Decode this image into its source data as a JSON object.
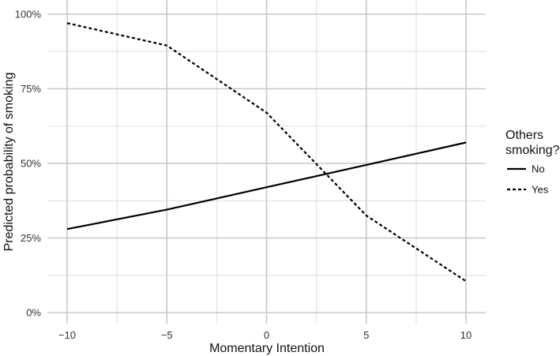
{
  "chart_data": {
    "type": "line",
    "xlabel": "Momentary Intention",
    "ylabel": "Predicted probability of smoking",
    "xlim": [
      -10,
      10
    ],
    "ylim": [
      0,
      1
    ],
    "x_ticks": [
      -10,
      -5,
      0,
      5,
      10
    ],
    "x_tick_labels": [
      "−10",
      "−5",
      "0",
      "5",
      "10"
    ],
    "y_ticks": [
      0,
      0.25,
      0.5,
      0.75,
      1
    ],
    "y_tick_labels": [
      "0%",
      "25%",
      "50%",
      "75%",
      "100%"
    ],
    "grid": true,
    "legend": {
      "title_lines": [
        "Others",
        "smoking?"
      ],
      "placement": "right"
    },
    "series": [
      {
        "name": "No",
        "line_style": "solid",
        "color": "#000000",
        "x": [
          -10,
          -5,
          0,
          5,
          10
        ],
        "y": [
          0.28,
          0.345,
          0.42,
          0.495,
          0.57
        ]
      },
      {
        "name": "Yes",
        "line_style": "dashed",
        "color": "#000000",
        "x": [
          -10,
          -5,
          0,
          5,
          10
        ],
        "y": [
          0.97,
          0.895,
          0.67,
          0.325,
          0.105
        ]
      }
    ]
  }
}
